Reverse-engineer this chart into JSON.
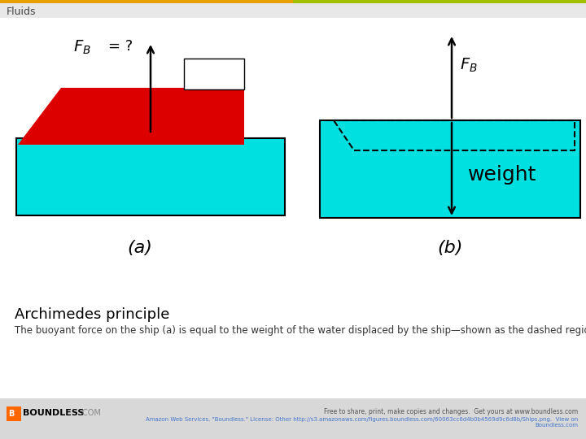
{
  "bg_color": "#ffffff",
  "header_bg": "#e8e8e8",
  "header_stripe_colors": [
    "#e8a000",
    "#a0c000"
  ],
  "header_text": "Fluids",
  "water_color": "#00e0e0",
  "ship_color": "#dd0000",
  "title": "Archimedes principle",
  "caption": "The buoyant force on the ship (a) is equal to the weight of the water displaced by the ship—shown as the dashed region in (b).",
  "footer_free": "Free to share, print, make copies and changes.  Get yours at www.boundless.com",
  "footer_ref": "Amazon Web Services. \"Boundless.\" License: Other http://s3.amazonaws.com/figures.boundless.com/60063cc6d4b0b4569d9c6d8b/Ships.png.  View on\nBoundless.com",
  "boundless_text": "BOUNDLESS",
  "boundless_com": ".COM",
  "label_a": "(a)",
  "label_b": "(b)",
  "weight_label": "weight",
  "fb_label": "$F_B$",
  "fb_eq": "= ?",
  "footer_bg": "#d8d8d8"
}
